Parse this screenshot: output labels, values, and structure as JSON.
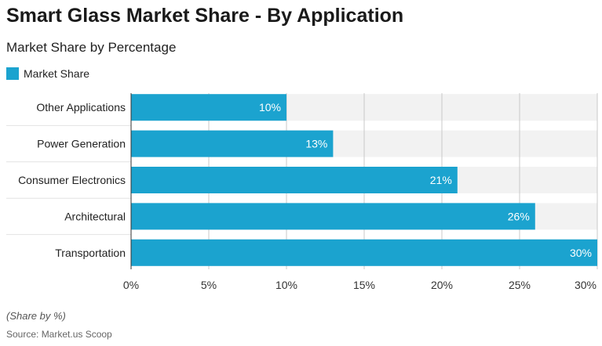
{
  "header": {
    "title": "Smart Glass Market Share - By Application",
    "subtitle": "Market Share by Percentage"
  },
  "legend": {
    "label": "Market Share",
    "color": "#1ba3cf"
  },
  "footer": {
    "note": "(Share by %)",
    "source": "Source: Market.us Scoop"
  },
  "chart_data": {
    "type": "bar",
    "orientation": "horizontal",
    "categories": [
      "Other Applications",
      "Power Generation",
      "Consumer Electronics",
      "Architectural",
      "Transportation"
    ],
    "series": [
      {
        "name": "Market Share",
        "values": [
          10,
          13,
          21,
          26,
          30
        ],
        "color": "#1ba3cf"
      }
    ],
    "data_labels": [
      "10%",
      "13%",
      "21%",
      "26%",
      "30%"
    ],
    "x_ticks": [
      0,
      5,
      10,
      15,
      20,
      25,
      30
    ],
    "x_tick_labels": [
      "0%",
      "5%",
      "10%",
      "15%",
      "20%",
      "25%",
      "30%"
    ],
    "xlim": [
      0,
      30
    ],
    "grid": true,
    "legend_position": "top-left"
  }
}
